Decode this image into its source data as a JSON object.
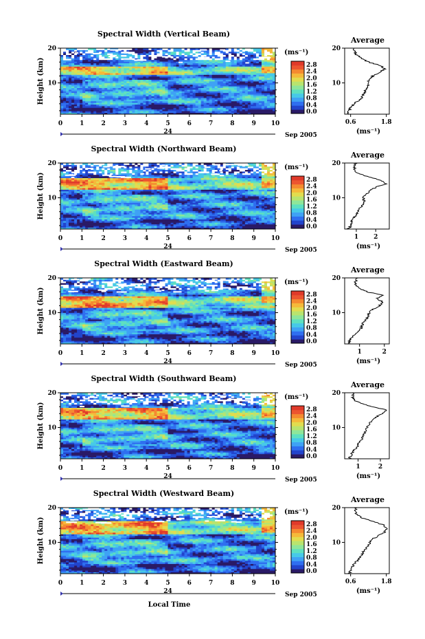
{
  "colorscale": [
    "#2a1a66",
    "#2244cc",
    "#2f6ff0",
    "#3fa2f5",
    "#47c9e8",
    "#5ee0c0",
    "#8ee69a",
    "#b9e46e",
    "#e2dc4e",
    "#f5b93a",
    "#f58a30",
    "#ec5530",
    "#e03a2a"
  ],
  "colorbar": {
    "unit": "(ms⁻¹)",
    "ticks": [
      "0.0",
      "0.4",
      "0.8",
      "1.2",
      "1.6",
      "2.0",
      "2.4",
      "2.8"
    ]
  },
  "time_axis": {
    "ticks": [
      "0",
      "1",
      "2",
      "3",
      "4",
      "5",
      "6",
      "7",
      "8",
      "9",
      "10"
    ],
    "marker": "24",
    "date": "Sep 2005",
    "xlabel": "Local Time"
  },
  "height_axis": {
    "label": "Height (km)",
    "ticks": [
      "20",
      "10"
    ]
  },
  "profile_title": "Average",
  "profile_unit": "(ms⁻¹)",
  "chart_data": [
    {
      "type": "heatmap",
      "title": "Spectral Width (Vertical Beam)",
      "xlabel": "",
      "ylabel": "Height (km)",
      "xlim": [
        0,
        10
      ],
      "ylim": [
        1,
        20
      ],
      "hot_band": {
        "height": [
          12.5,
          15
        ],
        "level": 0.75
      },
      "average_profile": {
        "xticks": [
          "0.6",
          "1.8"
        ],
        "xlim": [
          0.4,
          1.9
        ],
        "height": [
          1,
          2,
          3,
          4,
          5,
          6,
          7,
          8,
          9,
          10,
          11,
          12,
          13,
          14,
          15,
          16,
          17,
          18,
          19,
          20
        ],
        "value": [
          0.5,
          0.55,
          0.6,
          0.7,
          0.9,
          1.0,
          1.05,
          1.1,
          1.2,
          1.15,
          1.25,
          1.35,
          1.55,
          1.75,
          1.6,
          1.2,
          1.0,
          0.8,
          0.75,
          0.7
        ]
      }
    },
    {
      "type": "heatmap",
      "title": "Spectral Width (Northward Beam)",
      "xlabel": "",
      "ylabel": "Height (km)",
      "xlim": [
        0,
        10
      ],
      "ylim": [
        1,
        20
      ],
      "hot_band": {
        "height": [
          12.5,
          15.5
        ],
        "level": 0.85
      },
      "average_profile": {
        "xticks": [
          "1",
          "2"
        ],
        "xlim": [
          0.4,
          2.7
        ],
        "height": [
          1,
          2,
          3,
          4,
          5,
          6,
          7,
          8,
          9,
          10,
          11,
          12,
          13,
          14,
          15,
          16,
          17,
          18,
          19,
          20
        ],
        "value": [
          0.6,
          0.7,
          0.75,
          0.85,
          1.0,
          1.1,
          1.2,
          1.3,
          1.4,
          1.35,
          1.5,
          1.7,
          2.0,
          2.5,
          2.3,
          1.6,
          1.1,
          0.9,
          0.9,
          0.95
        ]
      }
    },
    {
      "type": "heatmap",
      "title": "Spectral Width (Eastward Beam)",
      "xlabel": "",
      "ylabel": "Height (km)",
      "xlim": [
        0,
        10
      ],
      "ylim": [
        1,
        20
      ],
      "hot_band": {
        "height": [
          11.5,
          15
        ],
        "level": 0.85
      },
      "average_profile": {
        "xticks": [
          "1",
          "2"
        ],
        "xlim": [
          0.4,
          2.2
        ],
        "height": [
          1,
          2,
          3,
          4,
          5,
          6,
          7,
          8,
          9,
          10,
          11,
          12,
          13,
          14,
          15,
          16,
          17,
          18,
          19,
          20
        ],
        "value": [
          0.55,
          0.6,
          0.7,
          0.85,
          1.0,
          1.1,
          1.15,
          1.25,
          1.35,
          1.4,
          1.55,
          1.8,
          1.95,
          1.7,
          1.9,
          1.3,
          1.0,
          0.8,
          0.85,
          0.9
        ]
      }
    },
    {
      "type": "heatmap",
      "title": "Spectral Width (Southward Beam)",
      "xlabel": "",
      "ylabel": "Height (km)",
      "xlim": [
        0,
        10
      ],
      "ylim": [
        1,
        20
      ],
      "hot_band": {
        "height": [
          12.5,
          15.5
        ],
        "level": 0.82
      },
      "average_profile": {
        "xticks": [
          "1",
          "2"
        ],
        "xlim": [
          0.4,
          2.4
        ],
        "height": [
          1,
          2,
          3,
          4,
          5,
          6,
          7,
          8,
          9,
          10,
          11,
          12,
          13,
          14,
          15,
          16,
          17,
          18,
          19,
          20
        ],
        "value": [
          0.6,
          0.7,
          0.75,
          0.9,
          1.0,
          1.1,
          1.2,
          1.25,
          1.35,
          1.4,
          1.5,
          1.65,
          1.8,
          2.1,
          2.3,
          1.6,
          1.1,
          0.8,
          0.75,
          0.8
        ]
      }
    },
    {
      "type": "heatmap",
      "title": "Spectral Width (Westward Beam)",
      "xlabel": "Local Time",
      "ylabel": "Height (km)",
      "xlim": [
        0,
        10
      ],
      "ylim": [
        1,
        20
      ],
      "hot_band": {
        "height": [
          12.5,
          16
        ],
        "level": 0.85
      },
      "average_profile": {
        "xticks": [
          "0.6",
          "1.8"
        ],
        "xlim": [
          0.4,
          1.9
        ],
        "height": [
          1,
          2,
          3,
          4,
          5,
          6,
          7,
          8,
          9,
          10,
          11,
          12,
          13,
          14,
          15,
          16,
          17,
          18,
          19,
          20
        ],
        "value": [
          0.55,
          0.6,
          0.65,
          0.75,
          0.85,
          0.95,
          1.0,
          1.1,
          1.2,
          1.25,
          1.35,
          1.55,
          1.75,
          1.8,
          1.7,
          1.4,
          1.0,
          0.8,
          0.75,
          0.8
        ]
      }
    }
  ]
}
